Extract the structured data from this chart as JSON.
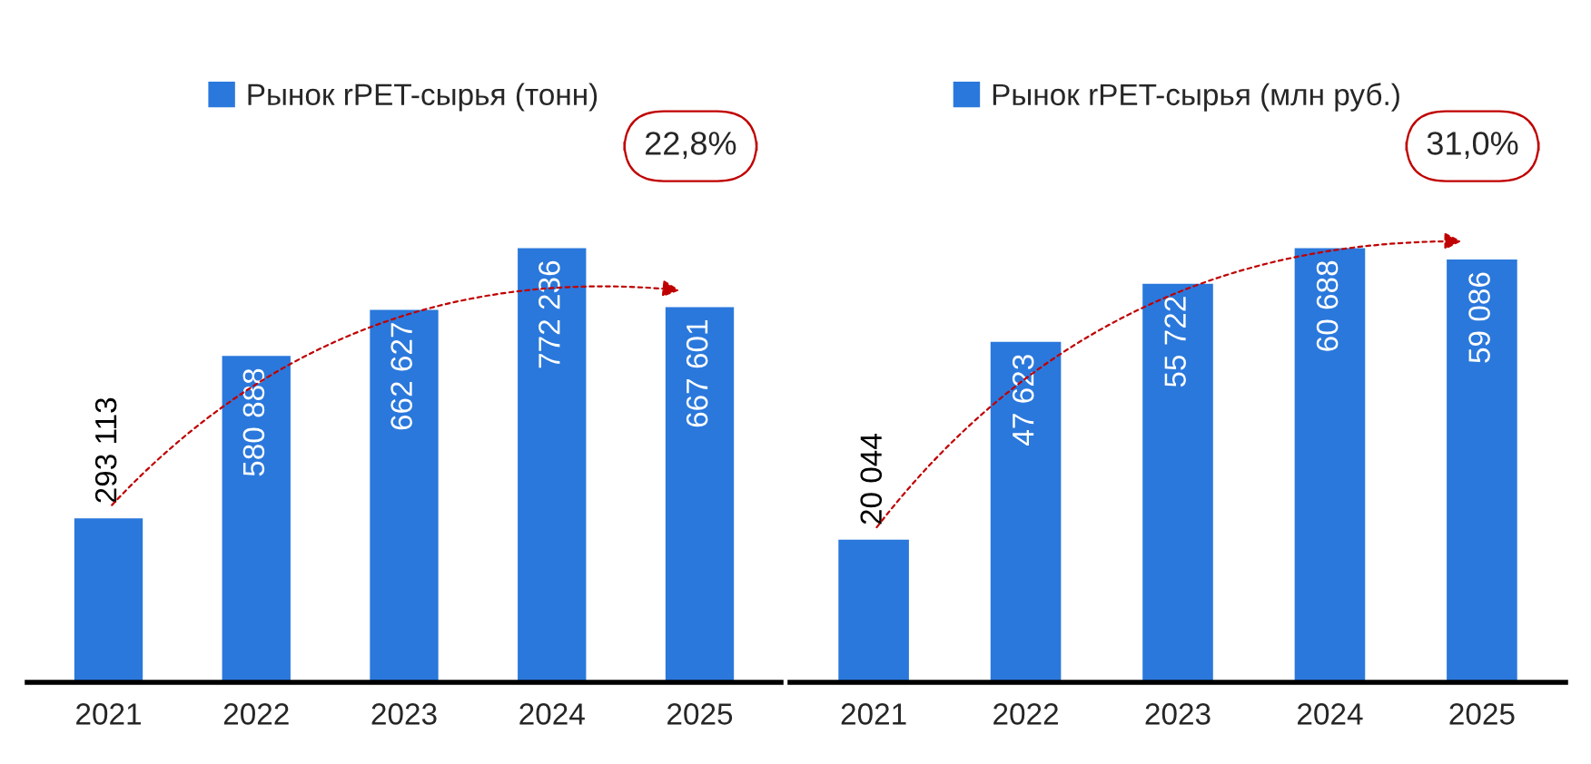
{
  "chart_data": [
    {
      "type": "bar",
      "categories": [
        "2021",
        "2022",
        "2023",
        "2024",
        "2025"
      ],
      "series": [
        {
          "name": "Рынок rPET-сырья (тонн)",
          "color": "#2a78dc",
          "values": [
            293113,
            580888,
            662627,
            772236,
            667601
          ]
        }
      ],
      "data_labels": true,
      "legend": "top",
      "annotations": [
        "22,8%"
      ]
    },
    {
      "type": "bar",
      "categories": [
        "2021",
        "2022",
        "2023",
        "2024",
        "2025"
      ],
      "series": [
        {
          "name": "Рынок rPET-сырья (млн руб.)",
          "color": "#2a78dc",
          "values": [
            20044,
            47623,
            55722,
            60688,
            59086
          ]
        }
      ],
      "data_labels": true,
      "legend": "top",
      "annotations": [
        "31,0%"
      ]
    }
  ]
}
